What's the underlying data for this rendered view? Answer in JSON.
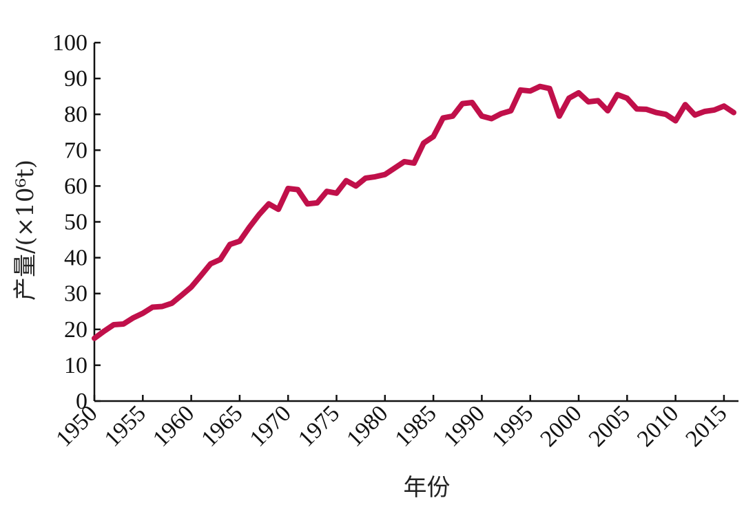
{
  "chart_data": {
    "type": "line",
    "title": "",
    "xlabel": "年份",
    "ylabel": "产量/(×10⁶t)",
    "xlim": [
      1950,
      2016.5
    ],
    "ylim": [
      0,
      100
    ],
    "x_ticks": [
      "1950",
      "1955",
      "1960",
      "1965",
      "1970",
      "1975",
      "1980",
      "1985",
      "1990",
      "1995",
      "2000",
      "2005",
      "2010",
      "2015"
    ],
    "y_ticks": [
      "0",
      "10",
      "20",
      "30",
      "40",
      "50",
      "60",
      "70",
      "80",
      "90",
      "100"
    ],
    "grid": false,
    "legend": "none",
    "series": [
      {
        "color": "#c0104a",
        "x": [
          1950,
          1951,
          1952,
          1953,
          1954,
          1955,
          1956,
          1957,
          1958,
          1959,
          1960,
          1961,
          1962,
          1963,
          1964,
          1965,
          1966,
          1967,
          1968,
          1969,
          1970,
          1971,
          1972,
          1973,
          1974,
          1975,
          1976,
          1977,
          1978,
          1979,
          1980,
          1981,
          1982,
          1983,
          1984,
          1985,
          1986,
          1987,
          1988,
          1989,
          1990,
          1991,
          1992,
          1993,
          1994,
          1995,
          1996,
          1997,
          1998,
          1999,
          2000,
          2001,
          2002,
          2003,
          2004,
          2005,
          2006,
          2007,
          2008,
          2009,
          2010,
          2011,
          2012,
          2013,
          2014,
          2015,
          2016
        ],
        "y": [
          17.5,
          19.5,
          21.3,
          21.5,
          23.2,
          24.5,
          26.2,
          26.4,
          27.3,
          29.5,
          31.8,
          35.0,
          38.3,
          39.5,
          43.7,
          44.6,
          48.5,
          52.0,
          55.0,
          53.5,
          59.3,
          59.0,
          55.0,
          55.3,
          58.5,
          58.0,
          61.5,
          60.0,
          62.2,
          62.6,
          63.2,
          65.0,
          66.8,
          66.4,
          72.0,
          73.8,
          79.0,
          79.5,
          83.0,
          83.3,
          79.5,
          78.8,
          80.2,
          81.0,
          86.8,
          86.5,
          87.8,
          87.2,
          79.5,
          84.5,
          86.0,
          83.5,
          83.8,
          81.0,
          85.5,
          84.5,
          81.5,
          81.4,
          80.5,
          80.0,
          78.2,
          82.7,
          79.8,
          80.8,
          81.2,
          82.3,
          80.5
        ]
      }
    ]
  }
}
